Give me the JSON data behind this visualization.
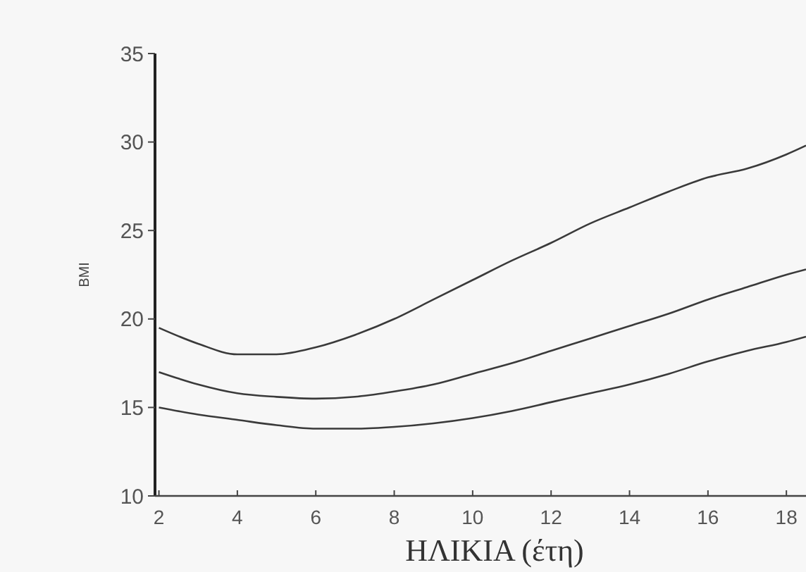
{
  "chart_data": {
    "type": "line",
    "xlabel": "ΗΛΙΚΙΑ (έτη)",
    "ylabel": "BMI",
    "xlim": [
      1.9,
      18.5
    ],
    "ylim": [
      10,
      35
    ],
    "xticks": [
      2,
      4,
      6,
      8,
      10,
      12,
      14,
      16,
      18
    ],
    "yticks": [
      10,
      15,
      20,
      25,
      30,
      35
    ],
    "grid": false,
    "marker": "none",
    "line_style": "solid",
    "series": [
      {
        "color": "#3a3a3a",
        "x": [
          2,
          3,
          4,
          5,
          6,
          7,
          8,
          9,
          10,
          11,
          12,
          13,
          14,
          15,
          16,
          17,
          18,
          18.5
        ],
        "values": [
          19.5,
          18.6,
          18,
          18,
          18.4,
          19.1,
          20,
          21.1,
          22.2,
          23.3,
          24.3,
          25.4,
          26.3,
          27.2,
          28,
          28.5,
          29.3,
          29.8
        ]
      },
      {
        "color": "#3a3a3a",
        "x": [
          2,
          3,
          4,
          5,
          6,
          7,
          8,
          9,
          10,
          11,
          12,
          13,
          14,
          15,
          16,
          17,
          18,
          18.5
        ],
        "values": [
          17,
          16.3,
          15.8,
          15.6,
          15.5,
          15.6,
          15.9,
          16.3,
          16.9,
          17.5,
          18.2,
          18.9,
          19.6,
          20.3,
          21.1,
          21.8,
          22.5,
          22.8
        ]
      },
      {
        "color": "#3a3a3a",
        "x": [
          2,
          3,
          4,
          5,
          6,
          7,
          8,
          9,
          10,
          11,
          12,
          13,
          14,
          15,
          16,
          17,
          18,
          18.5
        ],
        "values": [
          15,
          14.6,
          14.3,
          14,
          13.8,
          13.8,
          13.9,
          14.1,
          14.4,
          14.8,
          15.3,
          15.8,
          16.3,
          16.9,
          17.6,
          18.2,
          18.7,
          19
        ]
      }
    ]
  }
}
